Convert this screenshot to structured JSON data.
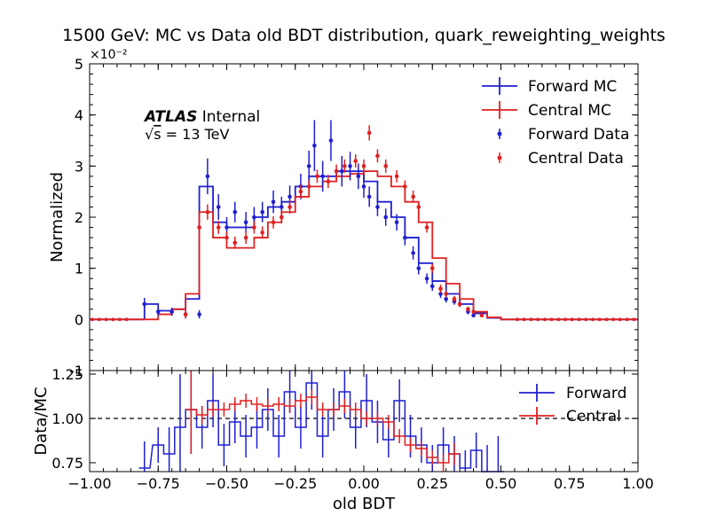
{
  "title": "1500 GeV: MC vs Data old BDT distribution, quark_reweighting_weights",
  "atlas": {
    "label": "ATLAS",
    "status": "Internal",
    "energy_prefix": "s",
    "energy_suffix": "= 13 TeV"
  },
  "colors": {
    "forward": "#1f1fd0",
    "central": "#e02020"
  },
  "chart_data": [
    {
      "type": "line",
      "panel": "main",
      "xlabel": "",
      "ylabel": "Normalized",
      "xlim": [
        -1.0,
        1.0
      ],
      "ylim": [
        -0.01,
        0.05
      ],
      "yticks": [
        -1,
        0,
        1,
        2,
        3,
        4,
        5
      ],
      "yticklabels": [
        "-1",
        "0",
        "1",
        "2",
        "3",
        "4",
        "5"
      ],
      "y_offset_label": "×10⁻²",
      "legend": {
        "placement": "top-right",
        "entries": [
          "Forward MC",
          "Central MC",
          "Forward Data",
          "Central Data"
        ]
      },
      "series": [
        {
          "name": "Forward MC",
          "style": "step",
          "x": [
            -0.825,
            -0.775,
            -0.725,
            -0.675,
            -0.625,
            -0.575,
            -0.525,
            -0.475,
            -0.425,
            -0.375,
            -0.325,
            -0.275,
            -0.225,
            -0.175,
            -0.125,
            -0.075,
            -0.025,
            0.025,
            0.075,
            0.125,
            0.175,
            0.225,
            0.275,
            0.325,
            0.375,
            0.425,
            0.475,
            0.525
          ],
          "y": [
            0.0,
            0.003,
            0.0017,
            0.002,
            0.004,
            0.026,
            0.019,
            0.018,
            0.018,
            0.02,
            0.022,
            0.023,
            0.026,
            0.028,
            0.028,
            0.029,
            0.029,
            0.027,
            0.023,
            0.02,
            0.016,
            0.011,
            0.0075,
            0.005,
            0.003,
            0.0012,
            0.0003,
            0.0
          ]
        },
        {
          "name": "Central MC",
          "style": "step",
          "x": [
            -0.825,
            -0.775,
            -0.725,
            -0.675,
            -0.625,
            -0.575,
            -0.525,
            -0.475,
            -0.425,
            -0.375,
            -0.325,
            -0.275,
            -0.225,
            -0.175,
            -0.125,
            -0.075,
            -0.025,
            0.025,
            0.075,
            0.125,
            0.175,
            0.225,
            0.275,
            0.325,
            0.375,
            0.425,
            0.475,
            0.525
          ],
          "y": [
            0.0,
            0.0,
            0.001,
            0.002,
            0.005,
            0.021,
            0.016,
            0.014,
            0.014,
            0.016,
            0.019,
            0.021,
            0.024,
            0.026,
            0.027,
            0.028,
            0.0285,
            0.029,
            0.028,
            0.026,
            0.023,
            0.019,
            0.012,
            0.007,
            0.004,
            0.0015,
            0.0004,
            0.0
          ]
        },
        {
          "name": "Forward Data",
          "style": "points",
          "x": [
            -0.8,
            -0.75,
            -0.7,
            -0.65,
            -0.6,
            -0.57,
            -0.53,
            -0.5,
            -0.47,
            -0.43,
            -0.4,
            -0.37,
            -0.33,
            -0.3,
            -0.27,
            -0.23,
            -0.2,
            -0.18,
            -0.15,
            -0.12,
            -0.08,
            -0.05,
            -0.02,
            0.0,
            0.02,
            0.05,
            0.08,
            0.12,
            0.15,
            0.18,
            0.2,
            0.23,
            0.25,
            0.28,
            0.3,
            0.33,
            0.35,
            0.38,
            0.4
          ],
          "y": [
            0.003,
            0.0015,
            0.0015,
            0.001,
            0.001,
            0.028,
            0.022,
            0.018,
            0.021,
            0.019,
            0.02,
            0.021,
            0.023,
            0.022,
            0.024,
            0.026,
            0.03,
            0.034,
            0.028,
            0.035,
            0.029,
            0.03,
            0.028,
            0.026,
            0.024,
            0.022,
            0.02,
            0.019,
            0.016,
            0.013,
            0.01,
            0.008,
            0.0065,
            0.005,
            0.004,
            0.0035,
            0.003,
            0.0015,
            0.0008
          ],
          "err": [
            0.0012,
            0.0008,
            0.0008,
            0.0008,
            0.0008,
            0.0035,
            0.0025,
            0.002,
            0.002,
            0.002,
            0.002,
            0.002,
            0.0022,
            0.002,
            0.0022,
            0.0025,
            0.003,
            0.005,
            0.003,
            0.004,
            0.003,
            0.0028,
            0.0025,
            0.0022,
            0.002,
            0.0018,
            0.0017,
            0.0016,
            0.0015,
            0.0013,
            0.0012,
            0.001,
            0.0009,
            0.0008,
            0.0007,
            0.0006,
            0.0006,
            0.0005,
            0.0004
          ]
        },
        {
          "name": "Central Data",
          "style": "points",
          "x": [
            -0.65,
            -0.6,
            -0.57,
            -0.53,
            -0.5,
            -0.47,
            -0.43,
            -0.4,
            -0.37,
            -0.33,
            -0.3,
            -0.27,
            -0.23,
            -0.2,
            -0.17,
            -0.13,
            -0.1,
            -0.07,
            -0.03,
            0.0,
            0.02,
            0.05,
            0.08,
            0.12,
            0.15,
            0.18,
            0.2,
            0.23,
            0.25,
            0.28,
            0.3,
            0.33,
            0.35,
            0.38,
            0.4,
            0.43
          ],
          "y": [
            0.001,
            0.018,
            0.021,
            0.018,
            0.016,
            0.015,
            0.016,
            0.018,
            0.017,
            0.019,
            0.02,
            0.022,
            0.025,
            0.026,
            0.028,
            0.027,
            0.029,
            0.03,
            0.031,
            0.03,
            0.0365,
            0.032,
            0.03,
            0.028,
            0.026,
            0.024,
            0.022,
            0.018,
            0.01,
            0.006,
            0.005,
            0.004,
            0.003,
            0.002,
            0.0015,
            0.0008
          ],
          "err": [
            0.0008,
            0.0015,
            0.0015,
            0.0013,
            0.0012,
            0.0012,
            0.0012,
            0.0012,
            0.0012,
            0.0012,
            0.0012,
            0.0013,
            0.0013,
            0.0013,
            0.0013,
            0.0013,
            0.0013,
            0.0013,
            0.0013,
            0.0013,
            0.0015,
            0.0013,
            0.0013,
            0.0012,
            0.0012,
            0.0012,
            0.0011,
            0.001,
            0.0009,
            0.0008,
            0.0007,
            0.0006,
            0.0006,
            0.0005,
            0.0005,
            0.0004
          ]
        }
      ]
    },
    {
      "type": "line",
      "panel": "ratio",
      "xlabel": "old BDT",
      "ylabel": "Data/MC",
      "xlim": [
        -1.0,
        1.0
      ],
      "ylim": [
        0.7,
        1.27
      ],
      "xticks": [
        -1.0,
        -0.75,
        -0.5,
        -0.25,
        0.0,
        0.25,
        0.5,
        0.75,
        1.0
      ],
      "xticklabels": [
        "−1.00",
        "−0.75",
        "−0.50",
        "−0.25",
        "0.00",
        "0.25",
        "0.50",
        "0.75",
        "1.00"
      ],
      "yticks": [
        0.75,
        1.0,
        1.25
      ],
      "yticklabels": [
        "0.75",
        "1.00",
        "1.25"
      ],
      "reference_line": 1.0,
      "legend": {
        "placement": "top-right",
        "entries": [
          "Forward",
          "Central"
        ]
      },
      "series": [
        {
          "name": "Forward",
          "style": "step-err",
          "x": [
            -0.8,
            -0.75,
            -0.71,
            -0.67,
            -0.63,
            -0.59,
            -0.55,
            -0.51,
            -0.47,
            -0.43,
            -0.39,
            -0.35,
            -0.31,
            -0.27,
            -0.23,
            -0.19,
            -0.15,
            -0.11,
            -0.07,
            -0.03,
            0.01,
            0.05,
            0.09,
            0.13,
            0.17,
            0.21,
            0.25,
            0.29,
            0.33,
            0.37,
            0.41,
            0.45,
            0.49
          ],
          "y": [
            0.72,
            0.85,
            0.8,
            0.95,
            1.05,
            0.95,
            1.1,
            0.85,
            0.98,
            0.9,
            0.95,
            1.05,
            0.9,
            1.15,
            0.95,
            1.2,
            0.9,
            1.05,
            1.15,
            0.95,
            1.1,
            0.98,
            0.88,
            1.1,
            0.9,
            0.85,
            0.75,
            0.85,
            0.8,
            0.72,
            0.82,
            0.7,
            0.6
          ],
          "err": [
            0.15,
            0.1,
            0.15,
            0.3,
            0.25,
            0.12,
            0.15,
            0.12,
            0.12,
            0.12,
            0.12,
            0.12,
            0.12,
            0.12,
            0.12,
            0.15,
            0.12,
            0.12,
            0.15,
            0.12,
            0.15,
            0.12,
            0.1,
            0.12,
            0.12,
            0.1,
            0.1,
            0.1,
            0.1,
            0.1,
            0.1,
            0.15,
            0.3
          ]
        },
        {
          "name": "Central",
          "style": "step-err",
          "x": [
            -0.63,
            -0.59,
            -0.55,
            -0.51,
            -0.47,
            -0.43,
            -0.39,
            -0.35,
            -0.31,
            -0.27,
            -0.23,
            -0.19,
            -0.15,
            -0.11,
            -0.07,
            -0.03,
            0.01,
            0.05,
            0.09,
            0.13,
            0.17,
            0.21,
            0.25,
            0.29,
            0.33
          ],
          "y": [
            1.05,
            1.02,
            1.05,
            1.05,
            1.08,
            1.1,
            1.08,
            1.07,
            1.08,
            1.07,
            1.1,
            1.12,
            1.05,
            1.05,
            1.07,
            1.05,
            1.0,
            1.0,
            0.98,
            0.9,
            0.85,
            0.83,
            0.78,
            0.75,
            0.8
          ],
          "err": [
            0.25,
            0.05,
            0.04,
            0.04,
            0.04,
            0.04,
            0.04,
            0.04,
            0.04,
            0.04,
            0.04,
            0.04,
            0.04,
            0.04,
            0.04,
            0.04,
            0.04,
            0.04,
            0.04,
            0.04,
            0.04,
            0.04,
            0.04,
            0.05,
            0.06
          ]
        }
      ]
    }
  ]
}
